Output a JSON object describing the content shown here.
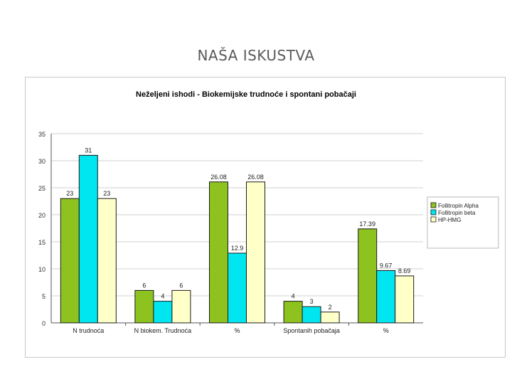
{
  "slide": {
    "title": "NAŠA ISKUSTVA"
  },
  "colors": {
    "alpha": "#8dc21f",
    "beta": "#00e6f0",
    "hmg": "#ffffc8",
    "grid": "#d0d0d0",
    "axis": "#555555"
  },
  "chart_data": {
    "type": "bar",
    "title": "Neželjeni ishodi - Biokemijske trudnoće i spontani pobačaji",
    "categories": [
      "N trudnoća",
      "N biokem. Trudnoća",
      "%",
      "Spontanih pobačaja",
      "%"
    ],
    "series": [
      {
        "name": "Follitropin Alpha",
        "values": [
          23,
          6,
          26.08,
          4,
          17.39
        ],
        "labels": [
          "23",
          "6",
          "26.08",
          "4",
          "17.39"
        ],
        "color": "#8dc21f"
      },
      {
        "name": "Follitropin beta",
        "values": [
          31,
          4,
          12.9,
          3,
          9.67
        ],
        "labels": [
          "31",
          "4",
          "12.9",
          "3",
          "9.67"
        ],
        "color": "#00e6f0"
      },
      {
        "name": "HP-HMG",
        "values": [
          23,
          6,
          26.08,
          2,
          8.69
        ],
        "labels": [
          "23",
          "6",
          "26.08",
          "2",
          "8.69"
        ],
        "color": "#ffffc8"
      }
    ],
    "yticks": [
      "0",
      "5",
      "10",
      "15",
      "20",
      "25",
      "30",
      "35"
    ],
    "ylim": [
      0,
      35
    ],
    "grid": true,
    "legend_position": "right"
  }
}
